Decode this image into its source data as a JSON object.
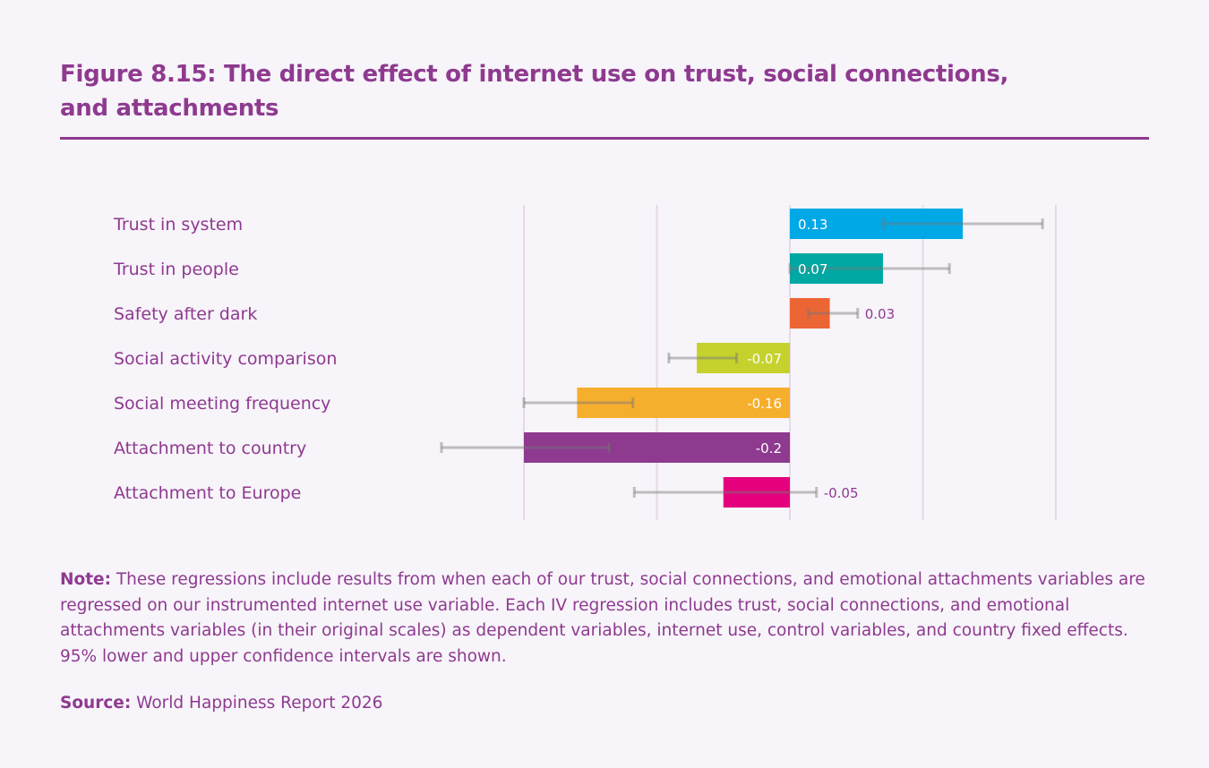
{
  "header": {
    "title": "Figure 8.15: The direct effect of internet use on trust, social connections, and attachments"
  },
  "chart_data": {
    "type": "bar",
    "orientation": "horizontal",
    "title": "Figure 8.15: The direct effect of internet use on trust, social connections, and attachments",
    "xlabel": "",
    "ylabel": "",
    "xlim": [
      -0.2,
      0.2
    ],
    "gridlines_x": [
      -0.2,
      -0.1,
      0,
      0.1,
      0.2
    ],
    "grid": true,
    "legend": "none",
    "categories": [
      "Trust in system",
      "Trust in people",
      "Safety after dark",
      "Social activity comparison",
      "Social meeting frequency",
      "Attachment to country",
      "Attachment to Europe"
    ],
    "values": [
      0.13,
      0.07,
      0.03,
      -0.07,
      -0.16,
      -0.2,
      -0.05
    ],
    "value_labels": [
      "0.13",
      "0.07",
      "0.03",
      "-0.07",
      "-0.16",
      "-0.2",
      "-0.05"
    ],
    "ci_lower": [
      0.07,
      0.0,
      0.014,
      -0.091,
      -0.2,
      -0.262,
      -0.117
    ],
    "ci_upper": [
      0.19,
      0.12,
      0.051,
      -0.04,
      -0.118,
      -0.136,
      0.02
    ],
    "colors": [
      "#00a8e6",
      "#00a8a3",
      "#ec6535",
      "#c5d22d",
      "#f6ae2d",
      "#8e3a8f",
      "#e5007e"
    ],
    "label_inside": [
      true,
      true,
      false,
      true,
      true,
      true,
      false
    ]
  },
  "note": {
    "label": "Note:",
    "text": " These regressions include results from when each of our trust, social connections, and emotional attachments variables are regressed on our instrumented internet use variable. Each IV regression includes trust, social connections, and emotional attachments variables (in their original scales) as dependent variables, internet use, control variables, and country fixed effects. 95% lower and upper confidence intervals are shown."
  },
  "source": {
    "label": "Source:",
    "text": " World Happiness Report 2026"
  }
}
